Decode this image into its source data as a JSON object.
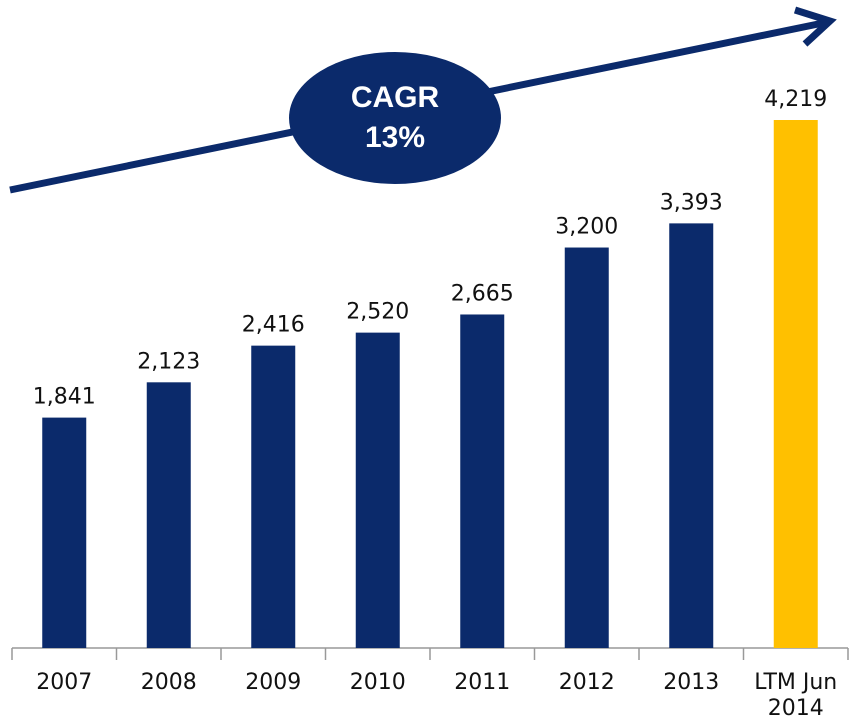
{
  "chart_data": {
    "type": "bar",
    "annotation": [
      "CAGR",
      "13%"
    ],
    "categories": [
      "2007",
      "2008",
      "2009",
      "2010",
      "2011",
      "2012",
      "2013",
      "LTM Jun 2014"
    ],
    "values": [
      1841,
      2123,
      2416,
      2520,
      2665,
      3200,
      3393,
      4219
    ],
    "value_labels": [
      "1,841",
      "2,123",
      "2,416",
      "2,520",
      "2,665",
      "3,200",
      "3,393",
      "4,219"
    ],
    "colors": [
      "#0b2a6b",
      "#0b2a6b",
      "#0b2a6b",
      "#0b2a6b",
      "#0b2a6b",
      "#0b2a6b",
      "#0b2a6b",
      "#ffc000"
    ]
  }
}
